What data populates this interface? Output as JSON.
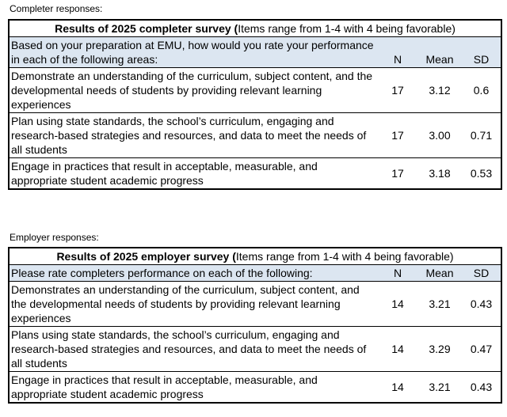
{
  "completer": {
    "caption": "Completer responses:",
    "title_bold": "Results of 2025 completer survey (",
    "title_rest": "Items range from 1-4 with 4 being favorable)",
    "prompt": "Based on your preparation at EMU, how would you rate your performance in each of the following areas:",
    "col_n": "N",
    "col_mean": "Mean",
    "col_sd": "SD",
    "rows": [
      {
        "text": "Demonstrate an understanding of the curriculum, subject content, and the developmental needs of students by providing relevant learning experiences",
        "n": "17",
        "mean": "3.12",
        "sd": "0.6"
      },
      {
        "text": "Plan using state standards, the school’s curriculum, engaging and research-based strategies and resources, and data to meet the needs of all students",
        "n": "17",
        "mean": "3.00",
        "sd": "0.71"
      },
      {
        "text": "Engage in practices that result in acceptable, measurable, and appropriate student academic progress",
        "n": "17",
        "mean": "3.18",
        "sd": "0.53"
      }
    ]
  },
  "employer": {
    "caption": "Employer responses:",
    "title_bold": "Results of 2025 employer survey (",
    "title_rest": "Items range from 1-4 with 4 being favorable)",
    "prompt": "Please rate completers performance on each of the following:",
    "col_n": "N",
    "col_mean": "Mean",
    "col_sd": "SD",
    "rows": [
      {
        "text": "Demonstrates an understanding of the curriculum, subject content, and the developmental needs of students by providing relevant learning experiences",
        "n": "14",
        "mean": "3.21",
        "sd": "0.43"
      },
      {
        "text": "Plans using state standards, the school’s curriculum, engaging and research-based strategies and resources, and data to meet the needs of all students",
        "n": "14",
        "mean": "3.29",
        "sd": "0.47"
      },
      {
        "text": "Engage in practices that result in acceptable, measurable, and appropriate student academic progress",
        "n": "14",
        "mean": "3.21",
        "sd": "0.43"
      }
    ]
  }
}
